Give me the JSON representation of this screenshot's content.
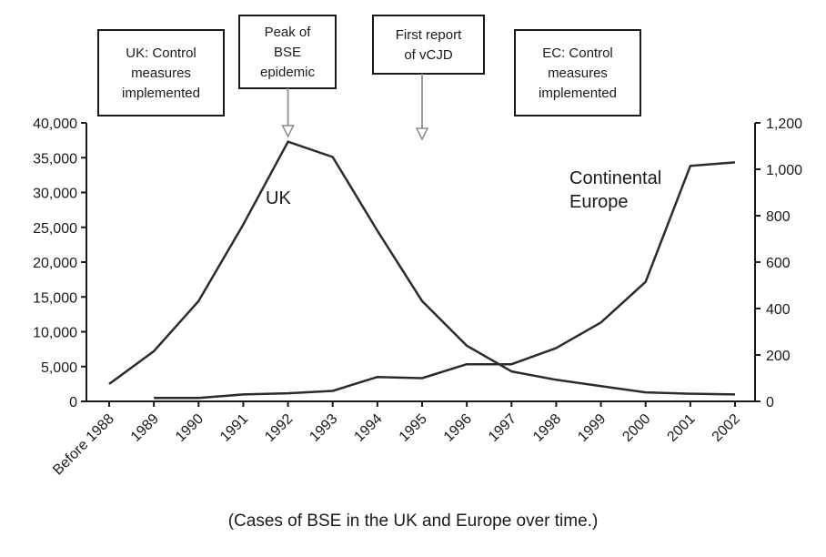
{
  "chart_data": {
    "type": "line",
    "categories": [
      "Before 1988",
      "1989",
      "1990",
      "1991",
      "1992",
      "1993",
      "1994",
      "1995",
      "1996",
      "1997",
      "1998",
      "1999",
      "2000",
      "2001",
      "2002"
    ],
    "series": [
      {
        "name": "UK",
        "axis": "left",
        "values": [
          2500,
          7200,
          14400,
          25400,
          37300,
          35100,
          24500,
          14400,
          8000,
          4300,
          3100,
          2200,
          1300,
          1100,
          1000
        ],
        "color": "#2b2b2b"
      },
      {
        "name": "Continental Europe",
        "axis": "right",
        "values": [
          null,
          15,
          15,
          30,
          35,
          45,
          105,
          100,
          160,
          160,
          230,
          340,
          515,
          1015,
          1030
        ],
        "color": "#2b2b2b"
      }
    ],
    "y_left": {
      "ylim": [
        0,
        40000
      ],
      "ticks": [
        "0",
        "5,000",
        "10,000",
        "15,000",
        "20,000",
        "25,000",
        "30,000",
        "35,000",
        "40,000"
      ]
    },
    "y_right": {
      "ylim": [
        0,
        1200
      ],
      "ticks": [
        "0",
        "200",
        "400",
        "600",
        "800",
        "1,000",
        "1,200"
      ]
    },
    "annotations": [
      {
        "lines": [
          "UK: Control",
          "measures",
          "implemented"
        ]
      },
      {
        "lines": [
          "Peak of",
          "BSE",
          "epidemic"
        ],
        "arrow_at": "1992"
      },
      {
        "lines": [
          "First report",
          "of vCJD"
        ],
        "arrow_at": "1995"
      },
      {
        "lines": [
          "EC: Control",
          "measures",
          "implemented"
        ]
      }
    ],
    "series_labels": {
      "uk": [
        "UK"
      ],
      "europe": [
        "Continental",
        "Europe"
      ]
    },
    "grid": false,
    "xlabel": "",
    "ylabel": ""
  },
  "caption": "(Cases of BSE in the UK and Europe over time.)"
}
